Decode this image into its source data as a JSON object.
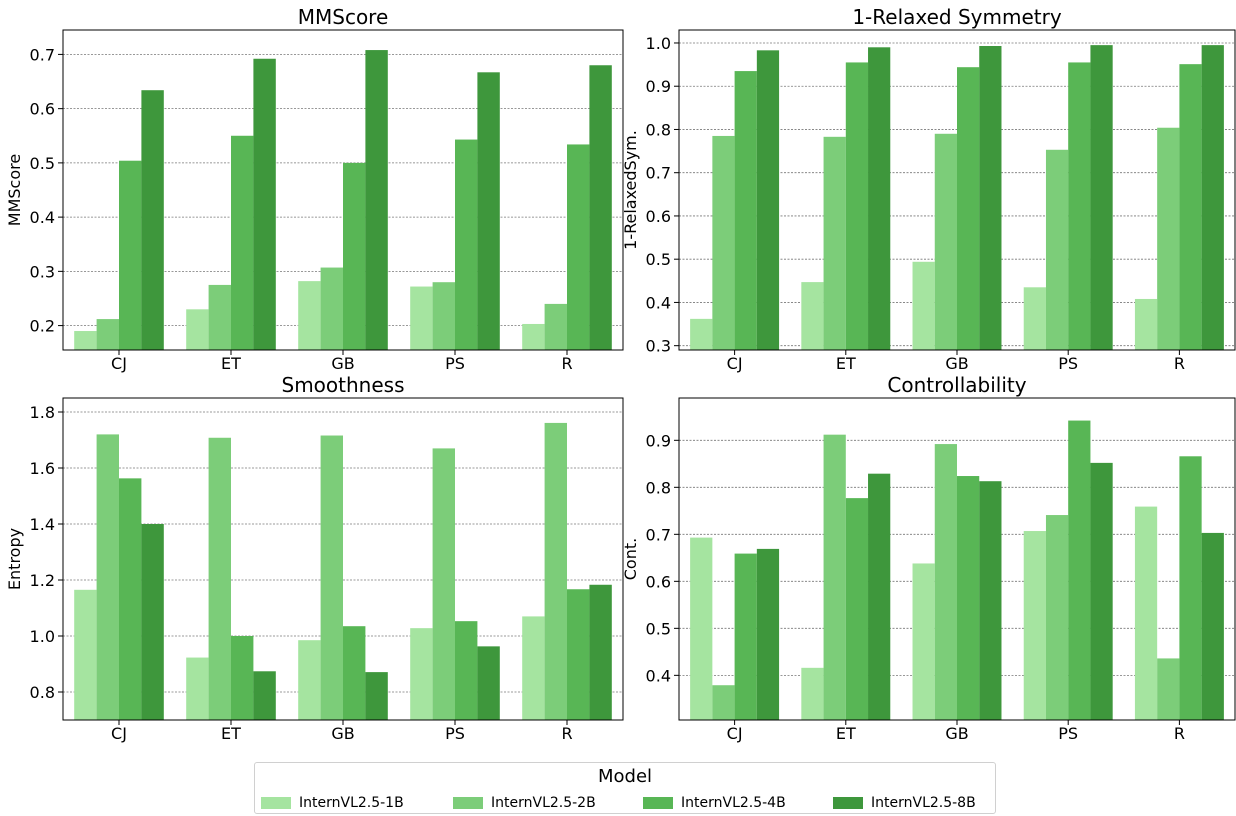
{
  "colors": [
    "#a5e4a0",
    "#7ccd79",
    "#58b655",
    "#3e973c"
  ],
  "legend": {
    "title": "Model",
    "entries": [
      "InternVL2.5-1B",
      "InternVL2.5-2B",
      "InternVL2.5-4B",
      "InternVL2.5-8B"
    ]
  },
  "chart_data": [
    {
      "type": "bar",
      "title": "MMScore",
      "ylabel": "MMScore",
      "xlabel": "",
      "categories": [
        "CJ",
        "ET",
        "GB",
        "PS",
        "R"
      ],
      "ylim": [
        0.155,
        0.745
      ],
      "yticks": [
        0.2,
        0.3,
        0.4,
        0.5,
        0.6,
        0.7
      ],
      "ytick_labels": [
        "0.2",
        "0.3",
        "0.4",
        "0.5",
        "0.6",
        "0.7"
      ],
      "grid": true,
      "series": [
        {
          "name": "InternVL2.5-1B",
          "values": [
            0.19,
            0.23,
            0.282,
            0.272,
            0.203
          ]
        },
        {
          "name": "InternVL2.5-2B",
          "values": [
            0.212,
            0.275,
            0.307,
            0.28,
            0.24
          ]
        },
        {
          "name": "InternVL2.5-4B",
          "values": [
            0.504,
            0.55,
            0.5,
            0.543,
            0.534
          ]
        },
        {
          "name": "InternVL2.5-8B",
          "values": [
            0.634,
            0.692,
            0.708,
            0.667,
            0.68
          ]
        }
      ]
    },
    {
      "type": "bar",
      "title": "1-Relaxed Symmetry",
      "ylabel": "1-RelaxedSym.",
      "xlabel": "",
      "categories": [
        "CJ",
        "ET",
        "GB",
        "PS",
        "R"
      ],
      "ylim": [
        0.29,
        1.03
      ],
      "yticks": [
        0.3,
        0.4,
        0.5,
        0.6,
        0.7,
        0.8,
        0.9,
        1.0
      ],
      "ytick_labels": [
        "0.3",
        "0.4",
        "0.5",
        "0.6",
        "0.7",
        "0.8",
        "0.9",
        "1.0"
      ],
      "grid": true,
      "series": [
        {
          "name": "InternVL2.5-1B",
          "values": [
            0.362,
            0.447,
            0.494,
            0.435,
            0.408
          ]
        },
        {
          "name": "InternVL2.5-2B",
          "values": [
            0.785,
            0.783,
            0.79,
            0.753,
            0.804
          ]
        },
        {
          "name": "InternVL2.5-4B",
          "values": [
            0.935,
            0.955,
            0.944,
            0.955,
            0.951
          ]
        },
        {
          "name": "InternVL2.5-8B",
          "values": [
            0.983,
            0.99,
            0.993,
            0.995,
            0.995
          ]
        }
      ]
    },
    {
      "type": "bar",
      "title": "Smoothness",
      "ylabel": "Entropy",
      "xlabel": "",
      "categories": [
        "CJ",
        "ET",
        "GB",
        "PS",
        "R"
      ],
      "ylim": [
        0.7,
        1.85
      ],
      "yticks": [
        0.8,
        1.0,
        1.2,
        1.4,
        1.6,
        1.8
      ],
      "ytick_labels": [
        "0.8",
        "1.0",
        "1.2",
        "1.4",
        "1.6",
        "1.8"
      ],
      "grid": true,
      "series": [
        {
          "name": "InternVL2.5-1B",
          "values": [
            1.165,
            0.923,
            0.985,
            1.028,
            1.07
          ]
        },
        {
          "name": "InternVL2.5-2B",
          "values": [
            1.72,
            1.708,
            1.716,
            1.67,
            1.761
          ]
        },
        {
          "name": "InternVL2.5-4B",
          "values": [
            1.563,
            1.0,
            1.035,
            1.053,
            1.167
          ]
        },
        {
          "name": "InternVL2.5-8B",
          "values": [
            1.4,
            0.874,
            0.871,
            0.963,
            1.183
          ]
        }
      ]
    },
    {
      "type": "bar",
      "title": "Controllability",
      "ylabel": "Cont.",
      "xlabel": "",
      "categories": [
        "CJ",
        "ET",
        "GB",
        "PS",
        "R"
      ],
      "ylim": [
        0.305,
        0.99
      ],
      "yticks": [
        0.4,
        0.5,
        0.6,
        0.7,
        0.8,
        0.9
      ],
      "ytick_labels": [
        "0.4",
        "0.5",
        "0.6",
        "0.7",
        "0.8",
        "0.9"
      ],
      "grid": true,
      "series": [
        {
          "name": "InternVL2.5-1B",
          "values": [
            0.693,
            0.416,
            0.638,
            0.707,
            0.759
          ]
        },
        {
          "name": "InternVL2.5-2B",
          "values": [
            0.379,
            0.912,
            0.892,
            0.741,
            0.436
          ]
        },
        {
          "name": "InternVL2.5-4B",
          "values": [
            0.659,
            0.777,
            0.824,
            0.942,
            0.866
          ]
        },
        {
          "name": "InternVL2.5-8B",
          "values": [
            0.669,
            0.829,
            0.813,
            0.852,
            0.703
          ]
        }
      ]
    }
  ]
}
